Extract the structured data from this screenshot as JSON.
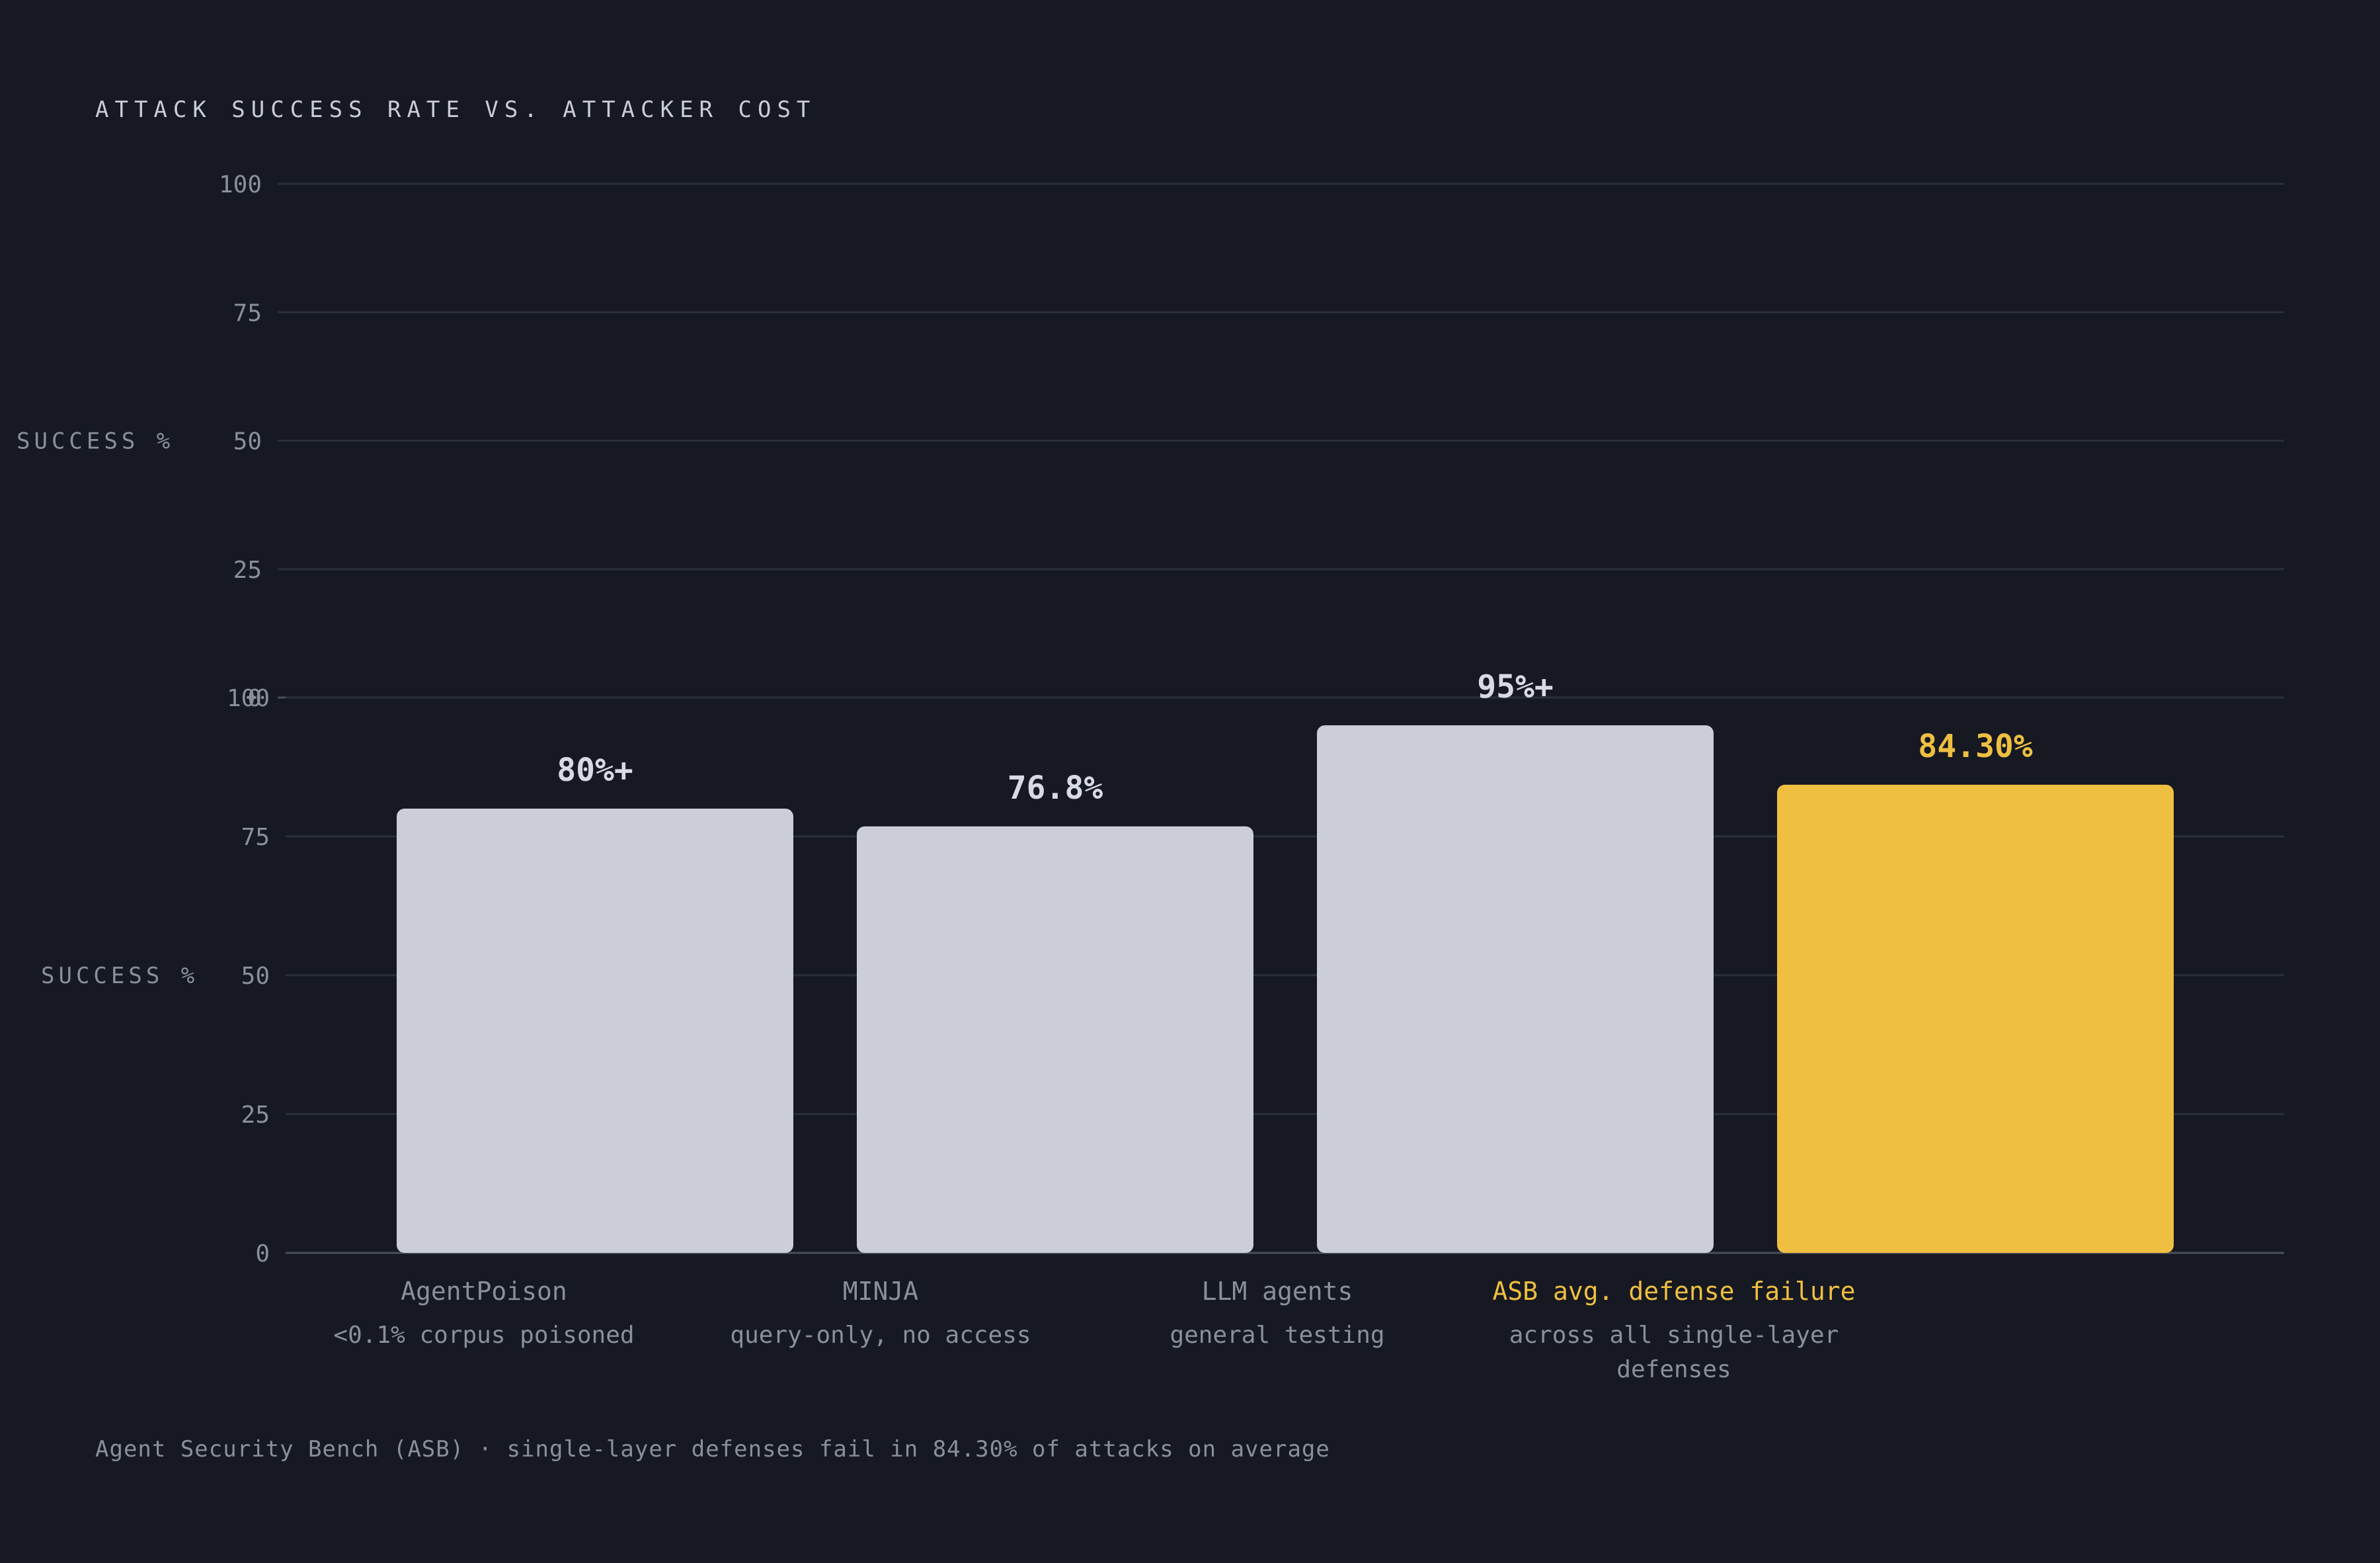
{
  "chart_data": {
    "type": "bar",
    "title": "ATTACK SUCCESS RATE VS. ATTACKER COST",
    "ylabel": "SUCCESS %",
    "ylim": [
      0,
      100
    ],
    "yticks": [
      0,
      25,
      50,
      75,
      100
    ],
    "grid": true,
    "categories": [
      "AgentPoison",
      "MINJA",
      "LLM agents",
      "ASB avg. defense failure"
    ],
    "subtitles": [
      [
        "<0.1% corpus poisoned"
      ],
      [
        "query-only, no access"
      ],
      [
        "general testing"
      ],
      [
        "across all single-layer",
        "defenses"
      ]
    ],
    "values": [
      80,
      76.8,
      95,
      84.3
    ],
    "value_labels": [
      "80%+",
      "76.8%",
      "95%+",
      "84.30%"
    ],
    "highlight_index": 3,
    "colors": {
      "bar": "#cbced8",
      "highlight": "#efbf41",
      "value_text": "#d8dae3",
      "category_text": "#8b8f9c"
    },
    "footnote": "Agent Security Bench (ASB) · single-layer defenses fail in 84.30% of attacks on average"
  }
}
